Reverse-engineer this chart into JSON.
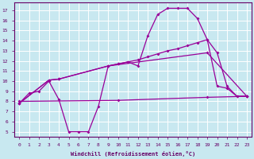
{
  "xlabel": "Windchill (Refroidissement éolien,°C)",
  "xlim": [
    0,
    23
  ],
  "ylim": [
    5,
    17
  ],
  "yticks": [
    5,
    6,
    7,
    8,
    9,
    10,
    11,
    12,
    13,
    14,
    15,
    16,
    17
  ],
  "xticks": [
    0,
    1,
    2,
    3,
    4,
    5,
    6,
    7,
    8,
    9,
    10,
    11,
    12,
    13,
    14,
    15,
    16,
    17,
    18,
    19,
    20,
    21,
    22,
    23
  ],
  "bg_color": "#c8e8f0",
  "grid_color": "#ffffff",
  "line_color": "#990099",
  "c1x": [
    0,
    1,
    2,
    3,
    4,
    5,
    6,
    7,
    8,
    9,
    10,
    11,
    12,
    13,
    14,
    15,
    16,
    17,
    18,
    19,
    20,
    21,
    22,
    23
  ],
  "c1y": [
    7.8,
    8.8,
    9.0,
    10.0,
    8.2,
    5.0,
    5.0,
    5.0,
    7.5,
    11.5,
    11.7,
    11.9,
    11.5,
    14.5,
    16.6,
    17.2,
    17.2,
    17.2,
    16.2,
    14.1,
    9.5,
    9.3,
    8.5,
    8.5
  ],
  "c2x": [
    0,
    3,
    4,
    9,
    10,
    11,
    12,
    13,
    14,
    15,
    16,
    17,
    18,
    19,
    20,
    21,
    22,
    23
  ],
  "c2y": [
    7.8,
    10.1,
    10.2,
    11.5,
    11.7,
    11.9,
    12.1,
    12.4,
    12.7,
    13.0,
    13.2,
    13.5,
    13.8,
    14.1,
    12.8,
    9.5,
    8.5,
    8.5
  ],
  "c3x": [
    0,
    10,
    19,
    23
  ],
  "c3y": [
    8.0,
    8.1,
    8.4,
    8.5
  ],
  "c4x": [
    0,
    3,
    4,
    9,
    19,
    23
  ],
  "c4y": [
    7.8,
    10.1,
    10.2,
    11.5,
    12.8,
    8.5
  ]
}
